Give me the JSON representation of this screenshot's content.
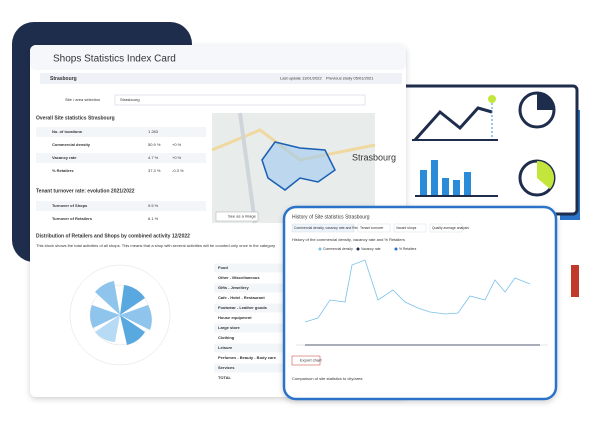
{
  "header": {
    "title": "Shops Statistics Index Card",
    "city": "Strasbourg",
    "last_update": "Last update 11/01/2022",
    "previous_study": "Previous study 05/01/2021",
    "selection_label": "Site / area selection",
    "selection_value": "Strasbourg"
  },
  "overall": {
    "title": "Overall Site statistics Strasbourg",
    "rows": [
      [
        "No. of locations",
        "1 283",
        ""
      ],
      [
        "Commercial density",
        "50.9 %",
        "+0 %"
      ],
      [
        "Vacancy rate",
        "4.7 %",
        "+0 %"
      ],
      [
        "% Retailers",
        "37.3 %",
        "-0.3 %"
      ]
    ]
  },
  "turnover": {
    "title": "Tenant turnover rate: evolution 2021/2022",
    "rows": [
      [
        "Turnover of Shops",
        "9.5 %"
      ],
      [
        "Turnover of Retailers",
        "6.1 %"
      ]
    ]
  },
  "map": {
    "label": "Strasbourg",
    "button": "See as a image"
  },
  "distribution": {
    "title": "Distribution of Retailers and Shops by combined activity 12/2022",
    "note": "This block shows the total activities of all shops. This means that a shop with several activities will be counted only once in the category",
    "activities": [
      "Food",
      "Other - Miscellaneous",
      "Gifts - Jewellery",
      "Cafe - Hotel - Restaurant",
      "Footwear - Leather goods",
      "House equipment",
      "Large store",
      "Clothing",
      "Leisure",
      "Perfumes - Beauty - Body care",
      "Services",
      "TOTAL"
    ]
  },
  "history": {
    "title": "History of Site statistics Strasbourg",
    "tabs": [
      "Commercial density, vacancy rate and Retailers",
      "Tenant turnover",
      "Vacant shops",
      "Quality average analysis"
    ],
    "chart_title": "History of the commercial density, vacancy rate and % Retailers",
    "legend": [
      "Commercial density",
      "Vacancy rate",
      "% Retailers"
    ],
    "export": "Export chart",
    "footer": "Comparison of site statistics to city/area"
  }
}
